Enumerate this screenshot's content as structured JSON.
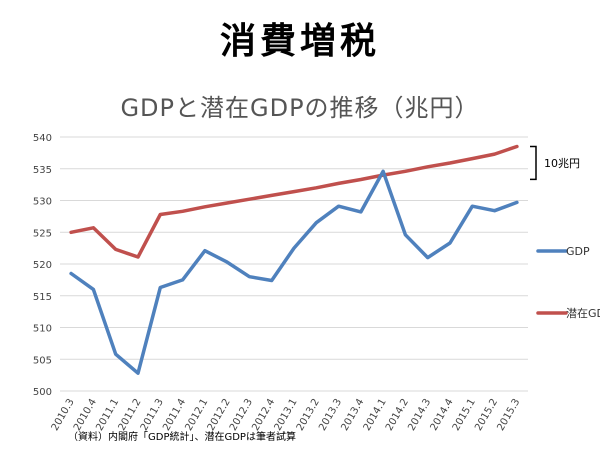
{
  "slide_title": "消費増税",
  "chart_title": "GDPと潜在GDPの推移（兆円）",
  "source_note": "（資料）内閣府「GDP統計」、潜在GDPは筆者試算",
  "bracket_label": "10兆円",
  "colors": {
    "gdp": "#4f81bd",
    "potential": "#c0504d",
    "grid": "#d9d9d9"
  },
  "chart_data": {
    "type": "line",
    "categories": [
      "2010.3",
      "2010.4",
      "2011.1",
      "2011.2",
      "2011.3",
      "2011.4",
      "2012.1",
      "2012.2",
      "2012.3",
      "2012.4",
      "2013.1",
      "2013.2",
      "2013.3",
      "2013.4",
      "2014.1",
      "2014.2",
      "2014.3",
      "2014.4",
      "2015.1",
      "2015.2",
      "2015.3"
    ],
    "ylim": [
      500,
      540
    ],
    "yticks": [
      500,
      505,
      510,
      515,
      520,
      525,
      530,
      535,
      540
    ],
    "grid": true,
    "legend": "right",
    "series": [
      {
        "name": "GDP",
        "color": "#4f81bd",
        "values": [
          518.5,
          516.0,
          505.8,
          502.8,
          516.3,
          517.5,
          522.1,
          520.3,
          518.0,
          517.4,
          522.5,
          526.5,
          529.1,
          528.2,
          534.6,
          524.6,
          521.0,
          523.3,
          529.1,
          528.4,
          529.7
        ]
      },
      {
        "name": "潜在GDP",
        "color": "#c0504d",
        "values": [
          525.0,
          525.7,
          522.3,
          521.1,
          527.8,
          528.3,
          529.0,
          529.6,
          530.2,
          530.8,
          531.4,
          532.0,
          532.7,
          533.3,
          534.0,
          534.6,
          535.3,
          535.9,
          536.6,
          537.3,
          538.5
        ]
      }
    ]
  }
}
